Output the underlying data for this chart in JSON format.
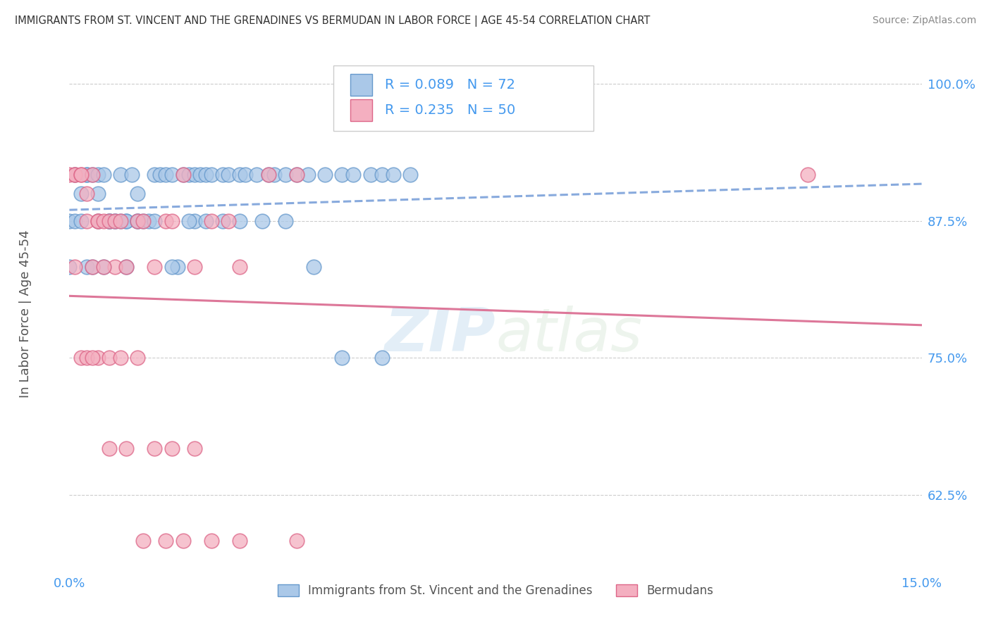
{
  "title": "IMMIGRANTS FROM ST. VINCENT AND THE GRENADINES VS BERMUDAN IN LABOR FORCE | AGE 45-54 CORRELATION CHART",
  "source": "Source: ZipAtlas.com",
  "ylabel": "In Labor Force | Age 45-54",
  "xlim": [
    0.0,
    0.15
  ],
  "ylim": [
    0.555,
    1.025
  ],
  "xticklabels": [
    "0.0%",
    "15.0%"
  ],
  "yticklabels": [
    "62.5%",
    "75.0%",
    "87.5%",
    "100.0%"
  ],
  "ytick_positions": [
    0.625,
    0.75,
    0.875,
    1.0
  ],
  "xtick_positions": [
    0.0,
    0.15
  ],
  "r_blue": 0.089,
  "n_blue": 72,
  "r_pink": 0.235,
  "n_pink": 50,
  "blue_fill": "#aac8e8",
  "pink_fill": "#f4afc0",
  "blue_edge": "#6699cc",
  "pink_edge": "#dd6688",
  "line_blue_color": "#88aadd",
  "line_pink_color": "#dd7799",
  "legend_label_blue": "Immigrants from St. Vincent and the Grenadines",
  "legend_label_pink": "Bermudans",
  "watermark_zip": "ZIP",
  "watermark_atlas": "atlas",
  "blue_scatter_x": [
    0.0,
    0.001,
    0.002,
    0.003,
    0.003,
    0.004,
    0.005,
    0.005,
    0.006,
    0.007,
    0.007,
    0.008,
    0.009,
    0.009,
    0.01,
    0.01,
    0.011,
    0.012,
    0.012,
    0.013,
    0.014,
    0.015,
    0.016,
    0.017,
    0.018,
    0.019,
    0.02,
    0.021,
    0.022,
    0.022,
    0.023,
    0.024,
    0.025,
    0.027,
    0.028,
    0.03,
    0.031,
    0.033,
    0.035,
    0.036,
    0.038,
    0.04,
    0.042,
    0.045,
    0.048,
    0.05,
    0.053,
    0.055,
    0.057,
    0.06,
    0.0,
    0.001,
    0.002,
    0.003,
    0.004,
    0.005,
    0.006,
    0.007,
    0.008,
    0.01,
    0.012,
    0.015,
    0.018,
    0.021,
    0.024,
    0.027,
    0.03,
    0.034,
    0.038,
    0.043,
    0.048,
    0.055
  ],
  "blue_scatter_y": [
    0.833,
    0.917,
    0.9,
    0.917,
    0.917,
    0.917,
    0.9,
    0.917,
    0.917,
    0.875,
    0.875,
    0.875,
    0.917,
    0.875,
    0.875,
    0.875,
    0.917,
    0.9,
    0.875,
    0.875,
    0.875,
    0.917,
    0.917,
    0.917,
    0.917,
    0.833,
    0.917,
    0.917,
    0.917,
    0.875,
    0.917,
    0.917,
    0.917,
    0.917,
    0.917,
    0.917,
    0.917,
    0.917,
    0.917,
    0.917,
    0.917,
    0.917,
    0.917,
    0.917,
    0.917,
    0.917,
    0.917,
    0.917,
    0.917,
    0.917,
    0.875,
    0.875,
    0.875,
    0.833,
    0.833,
    0.875,
    0.833,
    0.875,
    0.875,
    0.833,
    0.875,
    0.875,
    0.833,
    0.875,
    0.875,
    0.875,
    0.875,
    0.875,
    0.875,
    0.833,
    0.75,
    0.75
  ],
  "pink_scatter_x": [
    0.0,
    0.001,
    0.001,
    0.002,
    0.003,
    0.003,
    0.004,
    0.005,
    0.005,
    0.006,
    0.007,
    0.008,
    0.008,
    0.009,
    0.01,
    0.012,
    0.013,
    0.015,
    0.017,
    0.018,
    0.02,
    0.022,
    0.025,
    0.028,
    0.03,
    0.035,
    0.04,
    0.001,
    0.002,
    0.003,
    0.005,
    0.007,
    0.009,
    0.012,
    0.015,
    0.018,
    0.022,
    0.004,
    0.007,
    0.01,
    0.013,
    0.017,
    0.02,
    0.025,
    0.03,
    0.04,
    0.002,
    0.004,
    0.006,
    0.13
  ],
  "pink_scatter_y": [
    0.917,
    0.917,
    0.917,
    0.917,
    0.9,
    0.875,
    0.917,
    0.875,
    0.875,
    0.875,
    0.875,
    0.875,
    0.833,
    0.875,
    0.833,
    0.875,
    0.875,
    0.833,
    0.875,
    0.875,
    0.917,
    0.833,
    0.875,
    0.875,
    0.833,
    0.917,
    0.917,
    0.833,
    0.75,
    0.75,
    0.75,
    0.75,
    0.75,
    0.75,
    0.667,
    0.667,
    0.667,
    0.75,
    0.667,
    0.667,
    0.583,
    0.583,
    0.583,
    0.583,
    0.583,
    0.583,
    0.917,
    0.833,
    0.833,
    0.917
  ]
}
